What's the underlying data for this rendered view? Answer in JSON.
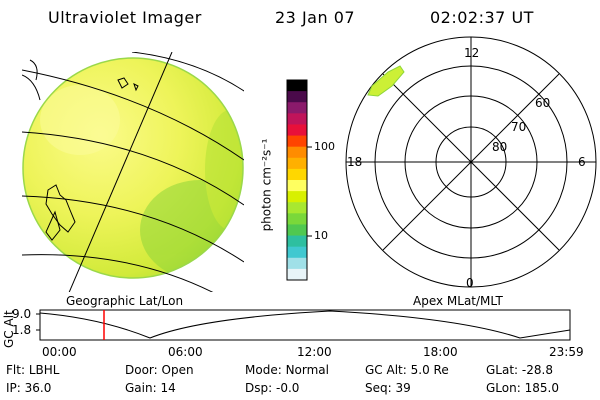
{
  "header": {
    "title": "Ultraviolet Imager",
    "date": "23 Jan 07",
    "time": "02:02:37 UT"
  },
  "left_panel": {
    "caption": "Geographic Lat/Lon"
  },
  "colorbar": {
    "unit_label": "photon cm⁻²s⁻¹",
    "ticks": [
      "100",
      "10"
    ],
    "colors": [
      "#000000",
      "#4a0a4a",
      "#8b1a6b",
      "#c0145a",
      "#e8103a",
      "#ff4500",
      "#ff8c00",
      "#ffb000",
      "#ffd700",
      "#ffff60",
      "#d8f000",
      "#a8e830",
      "#7ad83a",
      "#50c850",
      "#2ebfa0",
      "#40c8d0",
      "#a0e0e8",
      "#e8f4f8"
    ]
  },
  "right_panel": {
    "caption": "Apex MLat/MLT",
    "mlt_labels": {
      "top": "12",
      "left": "18",
      "right": "6",
      "bottom": "0"
    },
    "lat_labels": [
      "60",
      "70",
      "80"
    ]
  },
  "altitude_plot": {
    "ylabel": "GC Alt",
    "yticks": [
      "9.0",
      "1.8"
    ],
    "xticks": [
      "00:00",
      "06:00",
      "12:00",
      "18:00",
      "23:59"
    ],
    "marker_time": "02:02",
    "marker_color": "#ff0000"
  },
  "status": {
    "row1": [
      {
        "label": "Flt:",
        "value": "LBHL"
      },
      {
        "label": "Door:",
        "value": "Open"
      },
      {
        "label": "Mode:",
        "value": "Normal"
      },
      {
        "label": "GC Alt:",
        "value": "5.0 Re"
      },
      {
        "label": "GLat:",
        "value": "-28.8"
      }
    ],
    "row2": [
      {
        "label": "IP:",
        "value": "36.0"
      },
      {
        "label": "Gain:",
        "value": "14"
      },
      {
        "label": "Dsp:",
        "value": "-0.0"
      },
      {
        "label": "Seq:",
        "value": "39"
      },
      {
        "label": "GLon:",
        "value": "185.0"
      }
    ]
  }
}
